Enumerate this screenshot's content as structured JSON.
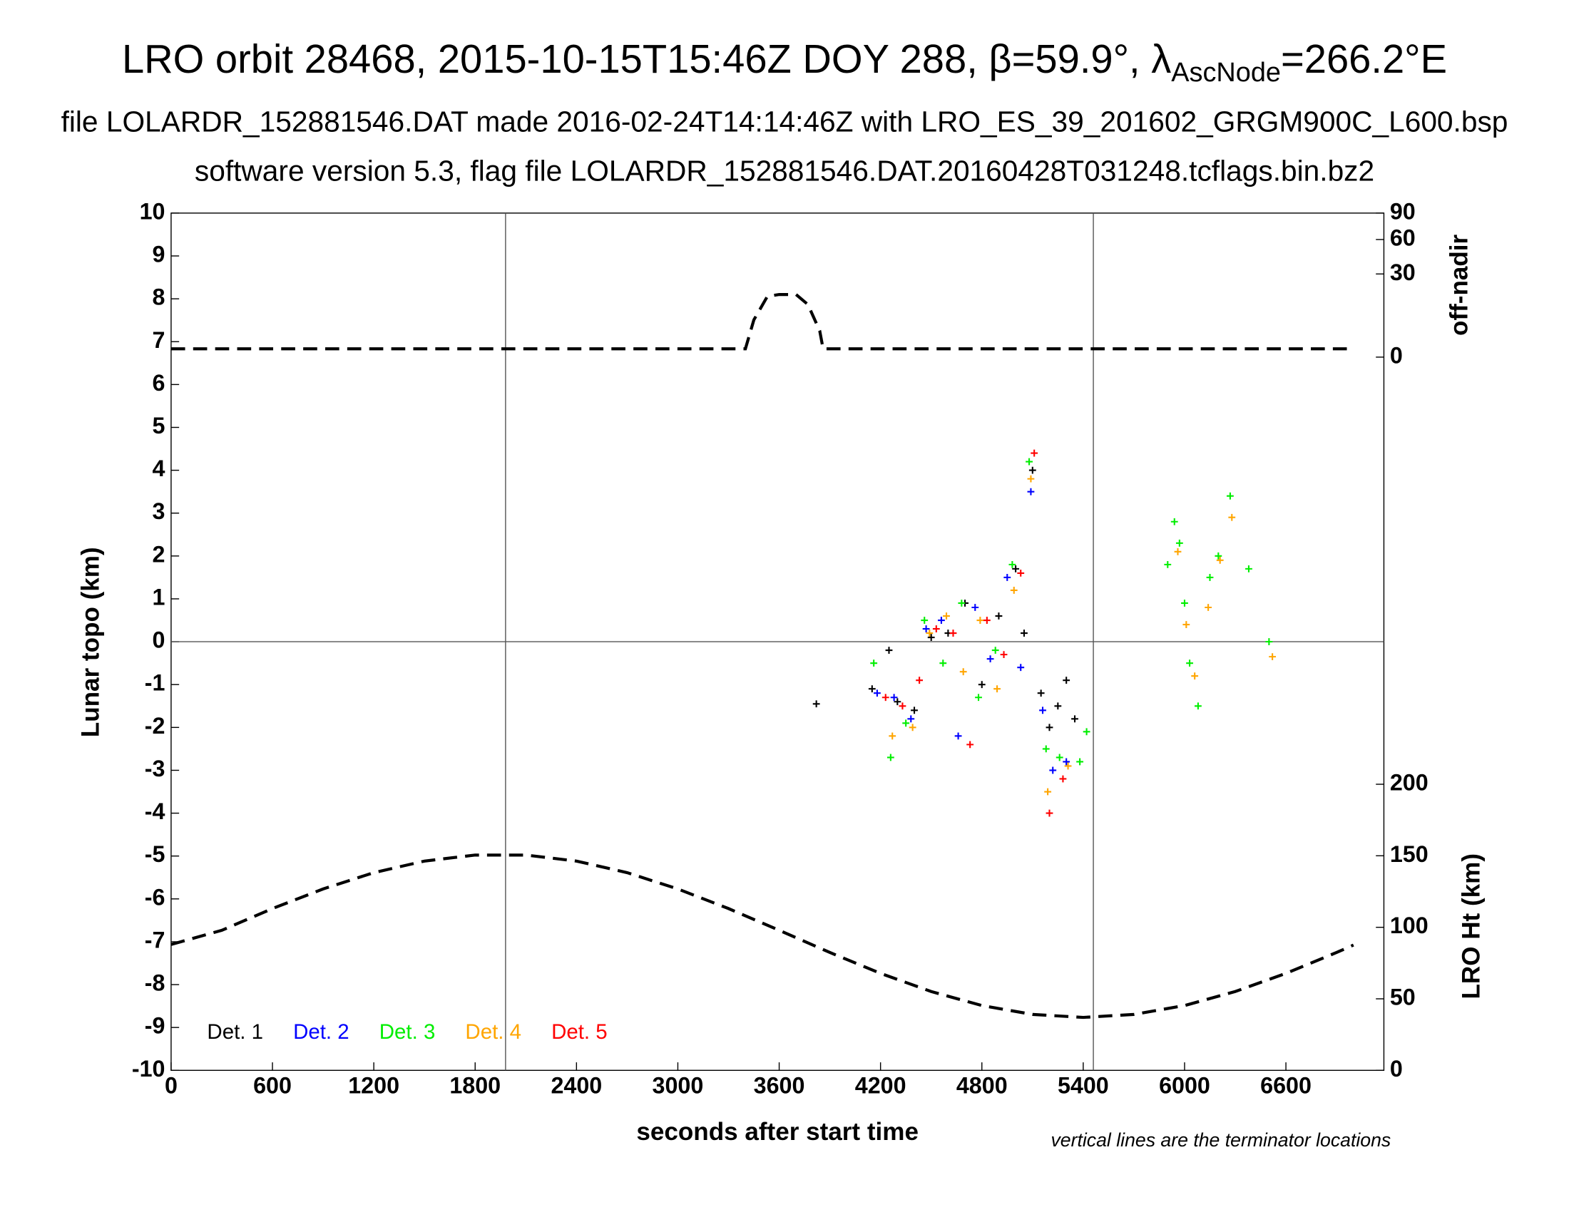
{
  "chart_data": {
    "type": "scatter",
    "title": [
      "LRO orbit 28468, 2015-10-15T15:46Z DOY 288, β=59.9°, λ",
      "AscNode",
      "=266.2°E"
    ],
    "subtitle": [
      "file LOLARDR_152881546.DAT made 2016-02-24T14:14:46Z with LRO_ES_39_201602_GRGM900C_L600.bsp",
      "software version 5.3, flag file LOLARDR_152881546.DAT.20160428T031248.tcflags.bin.bz2"
    ],
    "xlabel": "seconds after start time",
    "ylabel": "Lunar topo (km)",
    "y2label": "LRO Ht (km)",
    "y3label": "off-nadir",
    "note": "vertical lines are the terminator locations",
    "xlim": [
      0,
      7180
    ],
    "xticks": [
      0,
      600,
      1200,
      1800,
      2400,
      3000,
      3600,
      4200,
      4800,
      5400,
      6000,
      6600
    ],
    "ylim": [
      -10,
      10
    ],
    "yticks": [
      -10,
      -9,
      -8,
      -7,
      -6,
      -5,
      -4,
      -3,
      -2,
      -1,
      0,
      1,
      2,
      3,
      4,
      5,
      6,
      7,
      8,
      9,
      10
    ],
    "y2lim": [
      0,
      200
    ],
    "y2ticks": [
      0,
      50,
      100,
      150,
      200
    ],
    "y3lim": [
      0,
      90
    ],
    "y3ticks": [
      0,
      30,
      60,
      90
    ],
    "y3scale": "sqrt",
    "vlines": [
      1980,
      5460
    ],
    "hlines": [
      0
    ],
    "legend": "lower left",
    "series": [
      {
        "name": "Det. 1",
        "color": "#000000",
        "marker": "+",
        "x": [
          3820,
          4150,
          4250,
          4300,
          4400,
          4500,
          4600,
          4700,
          4800,
          4900,
          5000,
          5050,
          5100,
          5150,
          5200,
          5250,
          5300,
          5350
        ],
        "values": [
          -1.45,
          -1.1,
          -0.2,
          -1.4,
          -1.6,
          0.1,
          0.2,
          0.9,
          -1.0,
          0.6,
          1.7,
          0.2,
          4.0,
          -1.2,
          -2.0,
          -1.5,
          -0.9,
          -1.8
        ]
      },
      {
        "name": "Det. 2",
        "color": "#0000ff",
        "marker": "+",
        "x": [
          4180,
          4280,
          4380,
          4470,
          4560,
          4660,
          4760,
          4850,
          4950,
          5030,
          5090,
          5160,
          5220,
          5300
        ],
        "values": [
          -1.2,
          -1.3,
          -1.8,
          0.3,
          0.5,
          -2.2,
          0.8,
          -0.4,
          1.5,
          -0.6,
          3.5,
          -1.6,
          -3.0,
          -2.8
        ]
      },
      {
        "name": "Det. 3",
        "color": "#00ee00",
        "marker": "+",
        "x": [
          4160,
          4260,
          4350,
          4460,
          4570,
          4680,
          4780,
          4880,
          4980,
          5080,
          5180,
          5260,
          5380,
          5420,
          5900,
          5940,
          5970,
          6000,
          6030,
          6080,
          6150,
          6200,
          6270,
          6380,
          6500
        ],
        "values": [
          -0.5,
          -2.7,
          -1.9,
          0.5,
          -0.5,
          0.9,
          -1.3,
          -0.2,
          1.8,
          4.2,
          -2.5,
          -2.7,
          -2.8,
          -2.1,
          1.8,
          2.8,
          2.3,
          0.9,
          -0.5,
          -1.5,
          1.5,
          2.0,
          3.4,
          1.7,
          0.0
        ]
      },
      {
        "name": "Det. 4",
        "color": "#ffa500",
        "marker": "+",
        "x": [
          4270,
          4390,
          4490,
          4590,
          4690,
          4790,
          4890,
          4990,
          5090,
          5190,
          5310,
          5960,
          6010,
          6060,
          6140,
          6210,
          6280,
          6520
        ],
        "values": [
          -2.2,
          -2.0,
          0.2,
          0.6,
          -0.7,
          0.5,
          -1.1,
          1.2,
          3.8,
          -3.5,
          -2.9,
          2.1,
          0.4,
          -0.8,
          0.8,
          1.9,
          2.9,
          -0.35
        ]
      },
      {
        "name": "Det. 5",
        "color": "#ff0000",
        "marker": "+",
        "x": [
          4230,
          4330,
          4430,
          4530,
          4630,
          4730,
          4830,
          4930,
          5030,
          5110,
          5200,
          5280
        ],
        "values": [
          -1.3,
          -1.5,
          -0.9,
          0.3,
          0.2,
          -2.4,
          0.5,
          -0.3,
          1.6,
          4.4,
          -4.0,
          -3.2
        ]
      },
      {
        "color": "#000000",
        "style": "dashed",
        "axis": "y2",
        "x": [
          0,
          300,
          600,
          900,
          1200,
          1500,
          1800,
          2100,
          2400,
          2700,
          3000,
          3300,
          3600,
          3900,
          4200,
          4500,
          4800,
          5100,
          5400,
          5700,
          6000,
          6300,
          6600,
          6900,
          7000
        ],
        "values": [
          88,
          97.9,
          113.1,
          126.8,
          138.2,
          146.3,
          150.5,
          150.5,
          146.3,
          138.2,
          126.8,
          113.1,
          97.9,
          82.4,
          67.8,
          55.1,
          45.3,
          39.1,
          37,
          39.1,
          45.3,
          55.1,
          67.8,
          82.4,
          87.6
        ]
      },
      {
        "color": "#000000",
        "style": "dashed",
        "axis": "y3",
        "x": [
          0,
          3400,
          3450,
          3530,
          3600,
          3700,
          3770,
          3840,
          3860,
          7000
        ],
        "values": [
          0.3,
          0.3,
          6,
          16,
          17,
          17,
          12,
          3,
          0.3,
          0.3
        ]
      }
    ]
  }
}
